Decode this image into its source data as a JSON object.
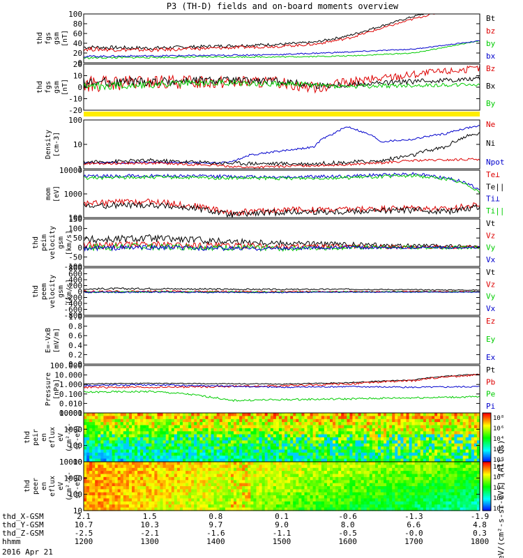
{
  "title": "P3 (TH-D) fields and on-board moments overview",
  "date_label": "2016 Apr 21",
  "colors": {
    "black": "#000000",
    "red": "#dd0000",
    "green": "#00cc00",
    "blue": "#0000cc",
    "yellow": "#ffee00"
  },
  "chart_data": [
    {
      "type": "line",
      "ylabel": [
        "thd",
        "fgs",
        "gsm",
        "[nT]"
      ],
      "yticks": [
        "100",
        "80",
        "60",
        "40",
        "20",
        "0"
      ],
      "ylim": [
        0,
        100
      ],
      "legend": [
        {
          "name": "Bt",
          "color": "black"
        },
        {
          "name": "bz",
          "color": "red"
        },
        {
          "name": "by",
          "color": "green"
        },
        {
          "name": "bx",
          "color": "blue"
        }
      ],
      "series": [
        {
          "name": "Bt",
          "color": "black",
          "x": [
            1200,
            1300,
            1400,
            1500,
            1550,
            1600,
            1650,
            1700,
            1800
          ],
          "y": [
            32,
            30,
            34,
            38,
            42,
            55,
            75,
            95,
            130
          ],
          "noise": 4
        },
        {
          "name": "bz",
          "color": "red",
          "x": [
            1200,
            1300,
            1400,
            1500,
            1550,
            1600,
            1650,
            1700,
            1800
          ],
          "y": [
            28,
            26,
            30,
            34,
            38,
            50,
            70,
            90,
            125
          ],
          "noise": 4
        },
        {
          "name": "by",
          "color": "green",
          "x": [
            1200,
            1300,
            1400,
            1500,
            1600,
            1700,
            1800
          ],
          "y": [
            10,
            11,
            12,
            12,
            14,
            20,
            45
          ],
          "noise": 2
        },
        {
          "name": "bx",
          "color": "blue",
          "x": [
            1200,
            1300,
            1400,
            1500,
            1600,
            1700,
            1800
          ],
          "y": [
            13,
            14,
            15,
            17,
            22,
            28,
            45
          ],
          "noise": 2
        }
      ]
    },
    {
      "type": "line",
      "ylabel": [
        "thd",
        "fgs",
        "gsm",
        "[nT]"
      ],
      "yticks": [
        "20",
        "10",
        "0",
        "-10",
        "-20"
      ],
      "ylim": [
        -25,
        20
      ],
      "legend": [
        {
          "name": "Bz",
          "color": "red"
        },
        {
          "name": "Bx",
          "color": "black"
        },
        {
          "name": "By",
          "color": "green"
        }
      ],
      "series": [
        {
          "name": "Bz",
          "color": "red",
          "x": [
            1200,
            1300,
            1400,
            1500,
            1550,
            1600,
            1700,
            1800
          ],
          "y": [
            0,
            2,
            3,
            2,
            -3,
            2,
            10,
            16
          ],
          "noise": 8
        },
        {
          "name": "Bx",
          "color": "black",
          "x": [
            1200,
            1300,
            1400,
            1500,
            1550,
            1600,
            1700,
            1800
          ],
          "y": [
            2,
            3,
            4,
            3,
            -1,
            0,
            3,
            6
          ],
          "noise": 5
        },
        {
          "name": "By",
          "color": "green",
          "x": [
            1200,
            1300,
            1400,
            1500,
            1600,
            1700,
            1800
          ],
          "y": [
            -2,
            0,
            2,
            1,
            -2,
            -1,
            0
          ],
          "noise": 4
        }
      ]
    },
    {
      "type": "bar",
      "note": "flag strip",
      "color": "yellow"
    },
    {
      "type": "line",
      "log": true,
      "ylabel": [
        "Density",
        "[cm-3]"
      ],
      "yticks": [
        "100",
        "10",
        "1"
      ],
      "ylim": [
        0.6,
        200
      ],
      "legend": [
        {
          "name": "Ne",
          "color": "red"
        },
        {
          "name": "Ni",
          "color": "black"
        },
        {
          "name": "Npot",
          "color": "blue"
        }
      ],
      "series": [
        {
          "name": "Npot",
          "color": "blue",
          "x": [
            1200,
            1300,
            1400,
            1430,
            1450,
            1500,
            1550,
            1580,
            1600,
            1620,
            1650,
            1700,
            1750,
            1800
          ],
          "y": [
            1.2,
            1.3,
            1.2,
            1.5,
            3,
            5,
            8,
            40,
            90,
            50,
            15,
            20,
            40,
            100
          ],
          "noise": 0.05
        },
        {
          "name": "Ni",
          "color": "black",
          "x": [
            1200,
            1300,
            1400,
            1500,
            1550,
            1600,
            1650,
            1700,
            1750,
            1800
          ],
          "y": [
            1.3,
            1.6,
            1.2,
            1.1,
            1.1,
            1.3,
            1.5,
            3,
            8,
            40
          ],
          "noise": 0.1
        },
        {
          "name": "Ne",
          "color": "red",
          "x": [
            1200,
            1300,
            1400,
            1450,
            1500,
            1600,
            1650,
            1700,
            1750,
            1800
          ],
          "y": [
            1.1,
            1.2,
            0.9,
            0.7,
            0.8,
            1.0,
            1.2,
            1.6,
            1.7,
            1.9
          ],
          "noise": 0.06
        }
      ]
    },
    {
      "type": "line",
      "log": true,
      "ylabel": [
        "mom",
        "[eV]"
      ],
      "yticks": [
        "10000",
        "1000",
        "100"
      ],
      "ylim": [
        60,
        12000
      ],
      "legend": [
        {
          "name": "Te⊥",
          "color": "red"
        },
        {
          "name": "Te||",
          "color": "black"
        },
        {
          "name": "Ti⊥",
          "color": "blue"
        },
        {
          "name": "Ti||",
          "color": "green"
        }
      ],
      "series": [
        {
          "name": "Ti⊥",
          "color": "blue",
          "x": [
            1200,
            1300,
            1400,
            1500,
            1600,
            1700,
            1750,
            1800
          ],
          "y": [
            6000,
            6500,
            6000,
            5500,
            6000,
            8000,
            5000,
            1200
          ],
          "noise": 0.08
        },
        {
          "name": "Ti||",
          "color": "green",
          "x": [
            1200,
            1300,
            1400,
            1500,
            1600,
            1700,
            1750,
            1800
          ],
          "y": [
            5000,
            5500,
            5000,
            4800,
            5200,
            6500,
            4500,
            1000
          ],
          "noise": 0.08
        },
        {
          "name": "Te⊥",
          "color": "red",
          "x": [
            1200,
            1300,
            1380,
            1420,
            1500,
            1600,
            1700,
            1750,
            1800
          ],
          "y": [
            300,
            350,
            200,
            100,
            140,
            150,
            180,
            150,
            250
          ],
          "noise": 0.15
        },
        {
          "name": "Te||",
          "color": "black",
          "x": [
            1200,
            1300,
            1380,
            1420,
            1500,
            1600,
            1700,
            1750,
            1800
          ],
          "y": [
            220,
            250,
            150,
            80,
            110,
            120,
            140,
            120,
            200
          ],
          "noise": 0.15
        }
      ]
    },
    {
      "type": "line",
      "ylabel": [
        "thd",
        "peim",
        "velocity",
        "gsm",
        "[km/s]"
      ],
      "yticks": [
        "150",
        "100",
        "50",
        "0",
        "-50",
        "-100"
      ],
      "ylim": [
        -100,
        150
      ],
      "legend": [
        {
          "name": "Vt",
          "color": "black"
        },
        {
          "name": "Vz",
          "color": "red"
        },
        {
          "name": "Vy",
          "color": "green"
        },
        {
          "name": "Vx",
          "color": "blue"
        }
      ],
      "series": [
        {
          "name": "Vt",
          "color": "black",
          "x": [
            1200,
            1300,
            1400,
            1500,
            1600,
            1700,
            1800
          ],
          "y": [
            40,
            50,
            35,
            25,
            15,
            8,
            5
          ],
          "noise": 22
        },
        {
          "name": "Vz",
          "color": "red",
          "x": [
            1200,
            1300,
            1400,
            1500,
            1600,
            1700,
            1800
          ],
          "y": [
            10,
            15,
            10,
            5,
            3,
            2,
            2
          ],
          "noise": 20
        },
        {
          "name": "Vy",
          "color": "green",
          "x": [
            1200,
            1300,
            1400,
            1500,
            1600,
            1700,
            1800
          ],
          "y": [
            0,
            5,
            0,
            -5,
            0,
            0,
            0
          ],
          "noise": 20
        },
        {
          "name": "Vx",
          "color": "blue",
          "x": [
            1200,
            1300,
            1400,
            1500,
            1600,
            1700,
            1800
          ],
          "y": [
            -5,
            0,
            -5,
            -5,
            0,
            0,
            0
          ],
          "noise": 14
        }
      ]
    },
    {
      "type": "line",
      "ylabel": [
        "thd",
        "peem",
        "velocity",
        "gsm",
        "[km/s]"
      ],
      "yticks": [
        "800",
        "600",
        "400",
        "200",
        "0",
        "-200",
        "-400",
        "-600",
        "-800"
      ],
      "ylim": [
        -800,
        800
      ],
      "legend": [
        {
          "name": "Vt",
          "color": "black"
        },
        {
          "name": "Vz",
          "color": "red"
        },
        {
          "name": "Vy",
          "color": "green"
        },
        {
          "name": "Vx",
          "color": "blue"
        }
      ],
      "series": [
        {
          "name": "Vt",
          "color": "black",
          "x": [
            1200,
            1300,
            1400,
            1500,
            1600,
            1700,
            1800
          ],
          "y": [
            90,
            100,
            80,
            70,
            80,
            60,
            50
          ],
          "noise": 35
        },
        {
          "name": "Vz",
          "color": "red",
          "x": [
            1200,
            1300,
            1400,
            1500,
            1600,
            1700,
            1800
          ],
          "y": [
            0,
            10,
            0,
            0,
            0,
            0,
            0
          ],
          "noise": 35
        },
        {
          "name": "Vy",
          "color": "green",
          "x": [
            1200,
            1300,
            1400,
            1500,
            1600,
            1700,
            1800
          ],
          "y": [
            -20,
            -10,
            -20,
            -20,
            -10,
            -10,
            -10
          ],
          "noise": 30
        },
        {
          "name": "Vx",
          "color": "blue",
          "x": [
            1200,
            1300,
            1400,
            1500,
            1600,
            1700,
            1800
          ],
          "y": [
            -30,
            -20,
            -30,
            -30,
            -20,
            -20,
            -20
          ],
          "noise": 25
        }
      ]
    },
    {
      "type": "line",
      "ylabel": [
        "E=-VxB",
        "[mV/m]"
      ],
      "yticks": [
        "1.0",
        "0.8",
        "0.6",
        "0.4",
        "0.2",
        "0.0"
      ],
      "ylim": [
        0,
        1
      ],
      "legend": [
        {
          "name": "Ez",
          "color": "red"
        },
        {
          "name": "Ey",
          "color": "green"
        },
        {
          "name": "Ex",
          "color": "blue"
        }
      ],
      "series": []
    },
    {
      "type": "line",
      "log": true,
      "ylabel": [
        "Pressure",
        "[nPa]"
      ],
      "yticks": [
        "100.000",
        "10.000",
        "1.000",
        "0.100",
        "0.010",
        "0.001"
      ],
      "ylim": [
        0.001,
        100
      ],
      "legend": [
        {
          "name": "Pt",
          "color": "black"
        },
        {
          "name": "Pb",
          "color": "red"
        },
        {
          "name": "Pe",
          "color": "green"
        },
        {
          "name": "Pi",
          "color": "blue"
        }
      ],
      "series": [
        {
          "name": "Pt",
          "color": "black",
          "x": [
            1200,
            1300,
            1400,
            1500,
            1600,
            1700,
            1800
          ],
          "y": [
            1.2,
            1.3,
            1.2,
            1.1,
            1.5,
            3,
            12
          ],
          "noise": 0.05
        },
        {
          "name": "Pb",
          "color": "red",
          "x": [
            1200,
            1300,
            1400,
            1500,
            1600,
            1700,
            1800
          ],
          "y": [
            0.5,
            0.5,
            0.6,
            0.7,
            1.1,
            2.5,
            10
          ],
          "noise": 0.1
        },
        {
          "name": "Pi",
          "color": "blue",
          "x": [
            1200,
            1300,
            1400,
            1500,
            1600,
            1700,
            1800
          ],
          "y": [
            0.8,
            0.9,
            0.7,
            0.5,
            0.6,
            0.5,
            0.6
          ],
          "noise": 0.08
        },
        {
          "name": "Pe",
          "color": "green",
          "x": [
            1200,
            1300,
            1380,
            1420,
            1500,
            1600,
            1700,
            1800
          ],
          "y": [
            0.15,
            0.18,
            0.06,
            0.02,
            0.025,
            0.03,
            0.04,
            0.05
          ],
          "noise": 0.1
        }
      ]
    },
    {
      "type": "heatmap",
      "ylabel": [
        "thd",
        "peir",
        "en",
        "eflux",
        "eV",
        "(cm²-s-",
        "sr-eV)"
      ],
      "yticks": [
        "10000",
        "1000",
        "100",
        "10"
      ],
      "colorbar_ticks": [
        "10⁸",
        "10⁶",
        "10⁴",
        "10²",
        "10⁰"
      ]
    },
    {
      "type": "heatmap",
      "ylabel": [
        "thd",
        "peer",
        "en",
        "eflux",
        "eV",
        "(cm²-s-",
        "sr-eV)"
      ],
      "yticks": [
        "10000",
        "1000",
        "100",
        "10"
      ],
      "colorbar_ticks": [
        "10⁸",
        "10⁶",
        "10⁴",
        "10²",
        "10⁰"
      ]
    }
  ],
  "colorbar_label": "[eV/(cm²-s-sr-eV)] (All Qs)",
  "x_axis": {
    "rows": [
      {
        "label": "thd_X-GSM",
        "values": [
          "2.1",
          "1.5",
          "0.8",
          "0.1",
          "-0.6",
          "-1.3",
          "-1.9"
        ]
      },
      {
        "label": "thd_Y-GSM",
        "values": [
          "10.7",
          "10.3",
          "9.7",
          "9.0",
          "8.0",
          "6.6",
          "4.8"
        ]
      },
      {
        "label": "thd_Z-GSM",
        "values": [
          "-2.5",
          "-2.1",
          "-1.6",
          "-1.1",
          "-0.5",
          "-0.0",
          "0.3"
        ]
      },
      {
        "label": "hhmm",
        "values": [
          "1200",
          "1300",
          "1400",
          "1500",
          "1600",
          "1700",
          "1800"
        ]
      }
    ],
    "range": [
      1200,
      1800
    ]
  }
}
